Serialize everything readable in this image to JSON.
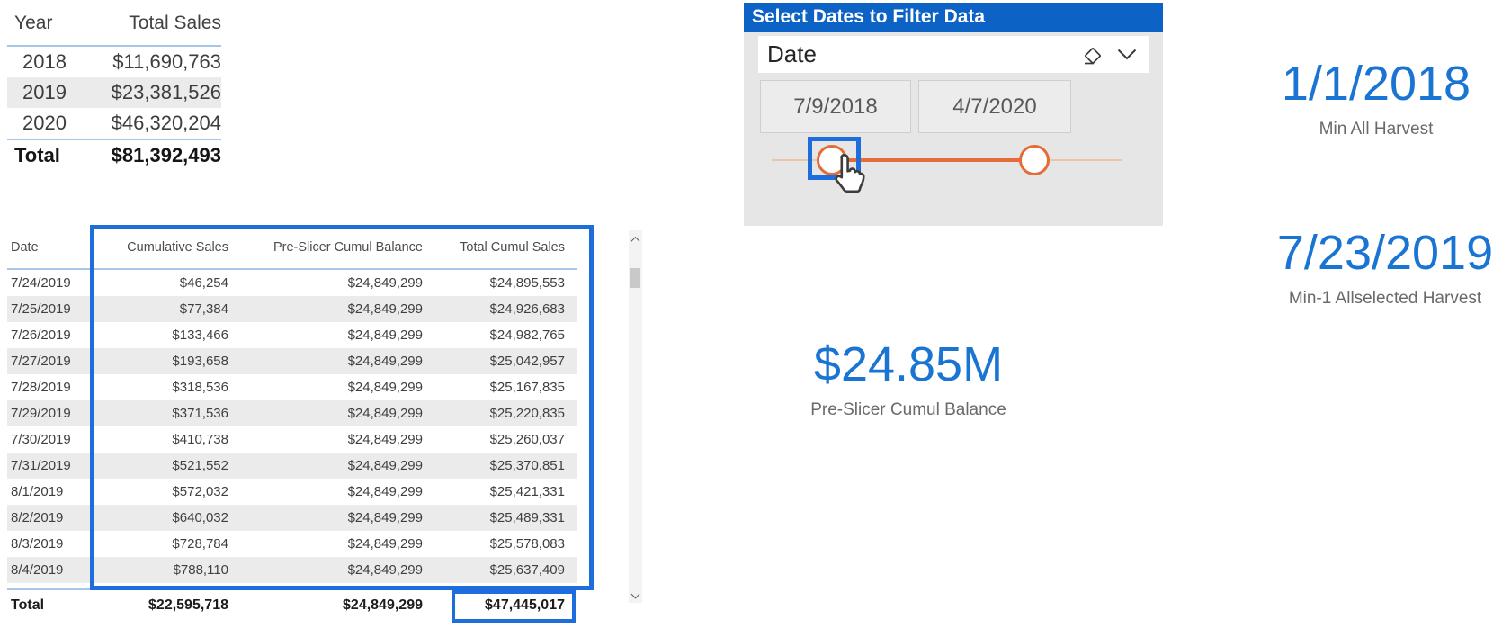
{
  "yearly_table": {
    "columns": [
      "Year",
      "Total Sales"
    ],
    "rows": [
      [
        "2018",
        "$11,690,763"
      ],
      [
        "2019",
        "$23,381,526"
      ],
      [
        "2020",
        "$46,320,204"
      ]
    ],
    "total": [
      "Total",
      "$81,392,493"
    ]
  },
  "detail_table": {
    "columns": [
      "Date",
      "Cumulative Sales",
      "Pre-Slicer Cumul Balance",
      "Total Cumul Sales"
    ],
    "rows": [
      [
        "7/24/2019",
        "$46,254",
        "$24,849,299",
        "$24,895,553"
      ],
      [
        "7/25/2019",
        "$77,384",
        "$24,849,299",
        "$24,926,683"
      ],
      [
        "7/26/2019",
        "$133,466",
        "$24,849,299",
        "$24,982,765"
      ],
      [
        "7/27/2019",
        "$193,658",
        "$24,849,299",
        "$25,042,957"
      ],
      [
        "7/28/2019",
        "$318,536",
        "$24,849,299",
        "$25,167,835"
      ],
      [
        "7/29/2019",
        "$371,536",
        "$24,849,299",
        "$25,220,835"
      ],
      [
        "7/30/2019",
        "$410,738",
        "$24,849,299",
        "$25,260,037"
      ],
      [
        "7/31/2019",
        "$521,552",
        "$24,849,299",
        "$25,370,851"
      ],
      [
        "8/1/2019",
        "$572,032",
        "$24,849,299",
        "$25,421,331"
      ],
      [
        "8/2/2019",
        "$640,032",
        "$24,849,299",
        "$25,489,331"
      ],
      [
        "8/3/2019",
        "$728,784",
        "$24,849,299",
        "$25,578,083"
      ],
      [
        "8/4/2019",
        "$788,110",
        "$24,849,299",
        "$25,637,409"
      ]
    ],
    "total": [
      "Total",
      "$22,595,718",
      "$24,849,299",
      "$47,445,017"
    ]
  },
  "slicer": {
    "title": "Select Dates to Filter Data",
    "field_label": "Date",
    "start_date": "7/9/2018",
    "end_date": "4/7/2020",
    "icons": [
      "eraser-icon",
      "chevron-down-icon"
    ]
  },
  "cards": [
    {
      "value": "1/1/2018",
      "label": "Min All Harvest"
    },
    {
      "value": "7/23/2019",
      "label": "Min-1 Allselected Harvest"
    },
    {
      "value": "$24.85M",
      "label": "Pre-Slicer Cumul Balance"
    }
  ],
  "colors": {
    "card_value_blue": "#1a75d2",
    "slicer_title_blue": "#0d63c5",
    "annotation_blue": "#1d6edc",
    "slider_orange": "#e66c37",
    "row_stripe_gray": "#ebebeb",
    "table_separator_blue": "#a6c7e8",
    "slicer_panel_gray": "#e6e6e6"
  }
}
